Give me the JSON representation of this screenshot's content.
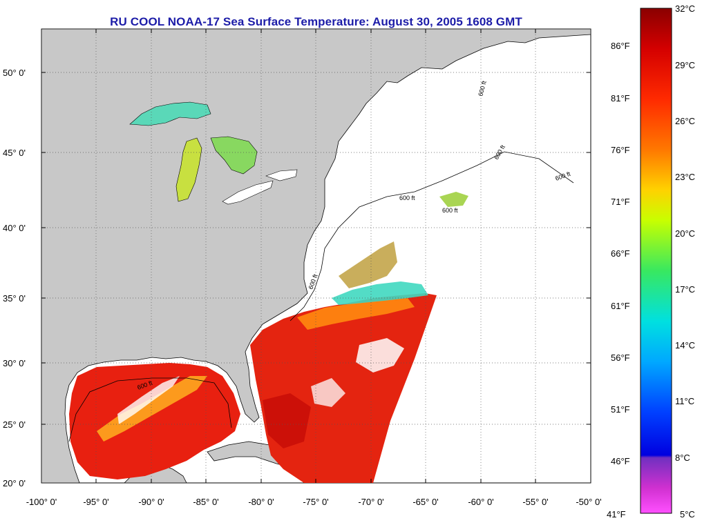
{
  "title": "RU COOL  NOAA-17  Sea Surface Temperature:  August 30, 2005 1608 GMT",
  "map": {
    "lat_labels": [
      "50° 0'",
      "45° 0'",
      "40° 0'",
      "35° 0'",
      "30° 0'",
      "25° 0'",
      "20° 0'"
    ],
    "lon_labels": [
      "-100° 0'",
      "-95° 0'",
      "-90° 0'",
      "-85° 0'",
      "-80° 0'",
      "-75° 0'",
      "-70° 0'",
      "-65° 0'",
      "-60° 0'",
      "-55° 0'",
      "-50° 0'"
    ],
    "contour_labels": [
      "600 ft",
      "600 ft",
      "600 ft",
      "600 ft",
      "600 ft",
      "600 ft",
      "600 ft"
    ],
    "colors": {
      "land": "#c8c8c8",
      "no_data": "#ffffff",
      "coastline": "#000000",
      "grid": "#555555"
    }
  },
  "legend": {
    "fahrenheit_labels": [
      "86°F",
      "81°F",
      "76°F",
      "71°F",
      "66°F",
      "61°F",
      "56°F",
      "51°F",
      "46°F",
      "41°F"
    ],
    "celsius_labels": [
      "32°C",
      "29°C",
      "26°C",
      "23°C",
      "20°C",
      "17°C",
      "14°C",
      "11°C",
      "8°C",
      "5°C"
    ],
    "colors": [
      "#8a0000",
      "#d40000",
      "#ff2a00",
      "#ff7800",
      "#ffd200",
      "#c8ff00",
      "#38e860",
      "#00e0e0",
      "#00a8ff",
      "#0040ff",
      "#0000e0",
      "#7030c0",
      "#d030d0",
      "#ff50ff"
    ]
  }
}
